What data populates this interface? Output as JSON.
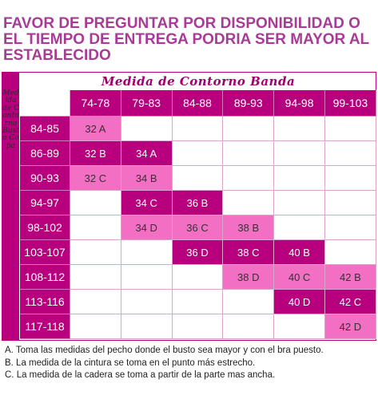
{
  "notice": "FAVOR DE PREGUNTAR POR DISPONIBILIDAD O EL TIEMPO DE ENTREGA PODRIA SER MAYOR AL ESTABLECIDO",
  "table": {
    "top_title": "Medida de Contorno Banda",
    "side_title": "Medida de Contorno Busto Copa",
    "columns": [
      "74-78",
      "79-83",
      "84-88",
      "89-93",
      "94-98",
      "99-103"
    ],
    "rows": [
      {
        "label": "84-85",
        "cells": [
          {
            "t": "32 A",
            "s": "light"
          },
          {
            "t": "",
            "s": "empty"
          },
          {
            "t": "",
            "s": "empty"
          },
          {
            "t": "",
            "s": "empty"
          },
          {
            "t": "",
            "s": "empty"
          },
          {
            "t": "",
            "s": "empty"
          }
        ]
      },
      {
        "label": "86-89",
        "cells": [
          {
            "t": "32 B",
            "s": "dark"
          },
          {
            "t": "34 A",
            "s": "dark"
          },
          {
            "t": "",
            "s": "empty"
          },
          {
            "t": "",
            "s": "empty"
          },
          {
            "t": "",
            "s": "empty"
          },
          {
            "t": "",
            "s": "empty"
          }
        ]
      },
      {
        "label": "90-93",
        "cells": [
          {
            "t": "32 C",
            "s": "light"
          },
          {
            "t": "34 B",
            "s": "light"
          },
          {
            "t": "",
            "s": "empty"
          },
          {
            "t": "",
            "s": "empty"
          },
          {
            "t": "",
            "s": "empty"
          },
          {
            "t": "",
            "s": "empty"
          }
        ]
      },
      {
        "label": "94-97",
        "cells": [
          {
            "t": "",
            "s": "empty"
          },
          {
            "t": "34 C",
            "s": "dark"
          },
          {
            "t": "36 B",
            "s": "dark"
          },
          {
            "t": "",
            "s": "empty"
          },
          {
            "t": "",
            "s": "empty"
          },
          {
            "t": "",
            "s": "empty"
          }
        ]
      },
      {
        "label": "98-102",
        "cells": [
          {
            "t": "",
            "s": "empty"
          },
          {
            "t": "34 D",
            "s": "light"
          },
          {
            "t": "36 C",
            "s": "light"
          },
          {
            "t": "38 B",
            "s": "light"
          },
          {
            "t": "",
            "s": "empty"
          },
          {
            "t": "",
            "s": "empty"
          }
        ]
      },
      {
        "label": "103-107",
        "cells": [
          {
            "t": "",
            "s": "empty"
          },
          {
            "t": "",
            "s": "empty"
          },
          {
            "t": "36 D",
            "s": "dark"
          },
          {
            "t": "38 C",
            "s": "dark"
          },
          {
            "t": "40 B",
            "s": "dark"
          },
          {
            "t": "",
            "s": "empty"
          }
        ]
      },
      {
        "label": "108-112",
        "cells": [
          {
            "t": "",
            "s": "empty"
          },
          {
            "t": "",
            "s": "empty"
          },
          {
            "t": "",
            "s": "empty"
          },
          {
            "t": "38 D",
            "s": "light"
          },
          {
            "t": "40 C",
            "s": "light"
          },
          {
            "t": "42 B",
            "s": "light"
          }
        ]
      },
      {
        "label": "113-116",
        "cells": [
          {
            "t": "",
            "s": "empty"
          },
          {
            "t": "",
            "s": "empty"
          },
          {
            "t": "",
            "s": "empty"
          },
          {
            "t": "",
            "s": "empty"
          },
          {
            "t": "40 D",
            "s": "dark"
          },
          {
            "t": "42 C",
            "s": "dark"
          }
        ]
      },
      {
        "label": "117-118",
        "cells": [
          {
            "t": "",
            "s": "empty"
          },
          {
            "t": "",
            "s": "empty"
          },
          {
            "t": "",
            "s": "empty"
          },
          {
            "t": "",
            "s": "empty"
          },
          {
            "t": "",
            "s": "empty"
          },
          {
            "t": "42 D",
            "s": "light"
          }
        ]
      }
    ]
  },
  "notes": [
    "A. Toma las medidas del pecho donde el busto sea mayor y con el bra puesto.",
    "B. La medida de la cintura se toma en el punto más estrecho.",
    "C. La medida de la cadera se toma a partir de la parte mas ancha."
  ],
  "colors": {
    "accent": "#b8007f",
    "highlight": "#f26fc3",
    "notice": "#a83b96"
  }
}
